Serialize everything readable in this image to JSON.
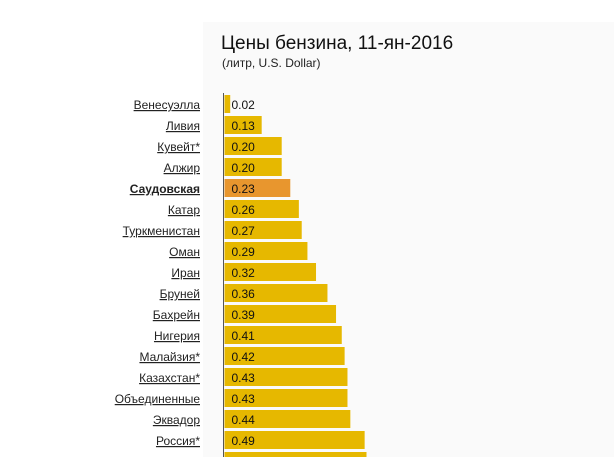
{
  "chart_data": {
    "type": "bar",
    "orientation": "horizontal",
    "title": "Цены бензина, 11-ян-2016",
    "subtitle": "(литр, U.S. Dollar)",
    "categories": [
      "Венесуэлла",
      "Ливия",
      "Кувейт*",
      "Алжир",
      "Саудовская",
      "Катар",
      "Туркменистан",
      "Оман",
      "Иран",
      "Бруней",
      "Бахрейн",
      "Нигерия",
      "Малайзия*",
      "Казахстан*",
      "Объединенные",
      "Эквадор",
      "Россия*"
    ],
    "labels": [
      "0.02",
      "0.13",
      "0.20",
      "0.20",
      "0.23",
      "0.26",
      "0.27",
      "0.29",
      "0.32",
      "0.36",
      "0.39",
      "0.41",
      "0.42",
      "0.43",
      "0.43",
      "0.44",
      "0.49"
    ],
    "values": [
      0.02,
      0.13,
      0.2,
      0.2,
      0.23,
      0.26,
      0.27,
      0.29,
      0.32,
      0.36,
      0.39,
      0.41,
      0.42,
      0.43,
      0.43,
      0.44,
      0.49
    ],
    "highlight_index": 4,
    "colors": {
      "bar": "#e6b800",
      "highlight": "#e8962e",
      "axis": "#555555"
    }
  }
}
